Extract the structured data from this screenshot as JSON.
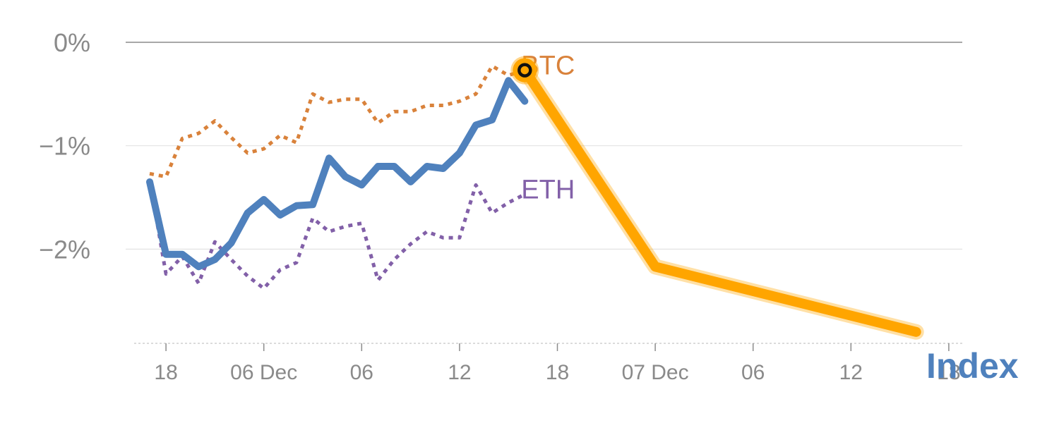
{
  "chart_data": {
    "type": "line",
    "y_unit": "%",
    "ylim": [
      -2.9,
      0
    ],
    "y_ticks": [
      {
        "value": 0,
        "label": "0%"
      },
      {
        "value": -1,
        "label": "−1%"
      },
      {
        "value": -2,
        "label": "−2%"
      }
    ],
    "x_ticks": [
      {
        "value": 2,
        "label": "18"
      },
      {
        "value": 8,
        "label": "06 Dec"
      },
      {
        "value": 14,
        "label": "06"
      },
      {
        "value": 20,
        "label": "12"
      },
      {
        "value": 26,
        "label": "18"
      },
      {
        "value": 32,
        "label": "07 Dec"
      },
      {
        "value": 38,
        "label": "06"
      },
      {
        "value": 44,
        "label": "12"
      },
      {
        "value": 50,
        "label": "18"
      }
    ],
    "grid": true,
    "series": [
      {
        "name": "BTC",
        "color": "#d9823b",
        "dash": "dotted",
        "x": [
          1,
          2,
          3,
          4,
          5,
          6,
          7,
          8,
          9,
          10,
          11,
          12,
          13,
          14,
          15,
          16,
          17,
          18,
          19,
          20,
          21,
          22,
          23,
          24
        ],
        "values": [
          -1.27,
          -1.3,
          -0.93,
          -0.88,
          -0.76,
          -0.92,
          -1.07,
          -1.03,
          -0.9,
          -0.97,
          -0.5,
          -0.58,
          -0.55,
          -0.55,
          -0.78,
          -0.67,
          -0.67,
          -0.61,
          -0.61,
          -0.57,
          -0.5,
          -0.23,
          -0.32,
          -0.27
        ]
      },
      {
        "name": "ETH",
        "color": "#8260a8",
        "dash": "dotted",
        "x": [
          1,
          2,
          3,
          4,
          5,
          6,
          7,
          8,
          9,
          10,
          11,
          12,
          13,
          14,
          15,
          16,
          17,
          18,
          19,
          20,
          21,
          22,
          23,
          24
        ],
        "values": [
          -1.33,
          -2.24,
          -2.07,
          -2.33,
          -1.93,
          -2.1,
          -2.26,
          -2.38,
          -2.2,
          -2.13,
          -1.7,
          -1.83,
          -1.78,
          -1.75,
          -2.3,
          -2.1,
          -1.95,
          -1.83,
          -1.89,
          -1.89,
          -1.38,
          -1.65,
          -1.55,
          -1.47
        ]
      },
      {
        "name": "Index",
        "color": "#4f81bd",
        "dash": "solid",
        "x": [
          1,
          2,
          3,
          4,
          5,
          6,
          7,
          8,
          9,
          10,
          11,
          12,
          13,
          14,
          15,
          16,
          17,
          18,
          19,
          20,
          21,
          22,
          23,
          24
        ],
        "values": [
          -1.35,
          -2.05,
          -2.05,
          -2.17,
          -2.1,
          -1.94,
          -1.65,
          -1.52,
          -1.67,
          -1.58,
          -1.57,
          -1.12,
          -1.3,
          -1.38,
          -1.2,
          -1.2,
          -1.35,
          -1.2,
          -1.22,
          -1.07,
          -0.8,
          -0.75,
          -0.37,
          -0.57
        ]
      },
      {
        "color": "#ffa500",
        "dash": "solid",
        "x": [
          24,
          32,
          48
        ],
        "values": [
          -0.27,
          -2.17,
          -2.8
        ]
      }
    ],
    "labels": [
      {
        "text": "BTC",
        "x": 24,
        "y": -0.27,
        "color": "#d9823b"
      },
      {
        "text": "ETH",
        "x": 24,
        "y": -1.47,
        "color": "#8260a8"
      }
    ],
    "index_label": {
      "text": "Index",
      "color": "#4f81bd"
    },
    "highlight_point": {
      "x": 24,
      "y": -0.27,
      "fill": "#ffa500",
      "ring": "#111111"
    }
  }
}
